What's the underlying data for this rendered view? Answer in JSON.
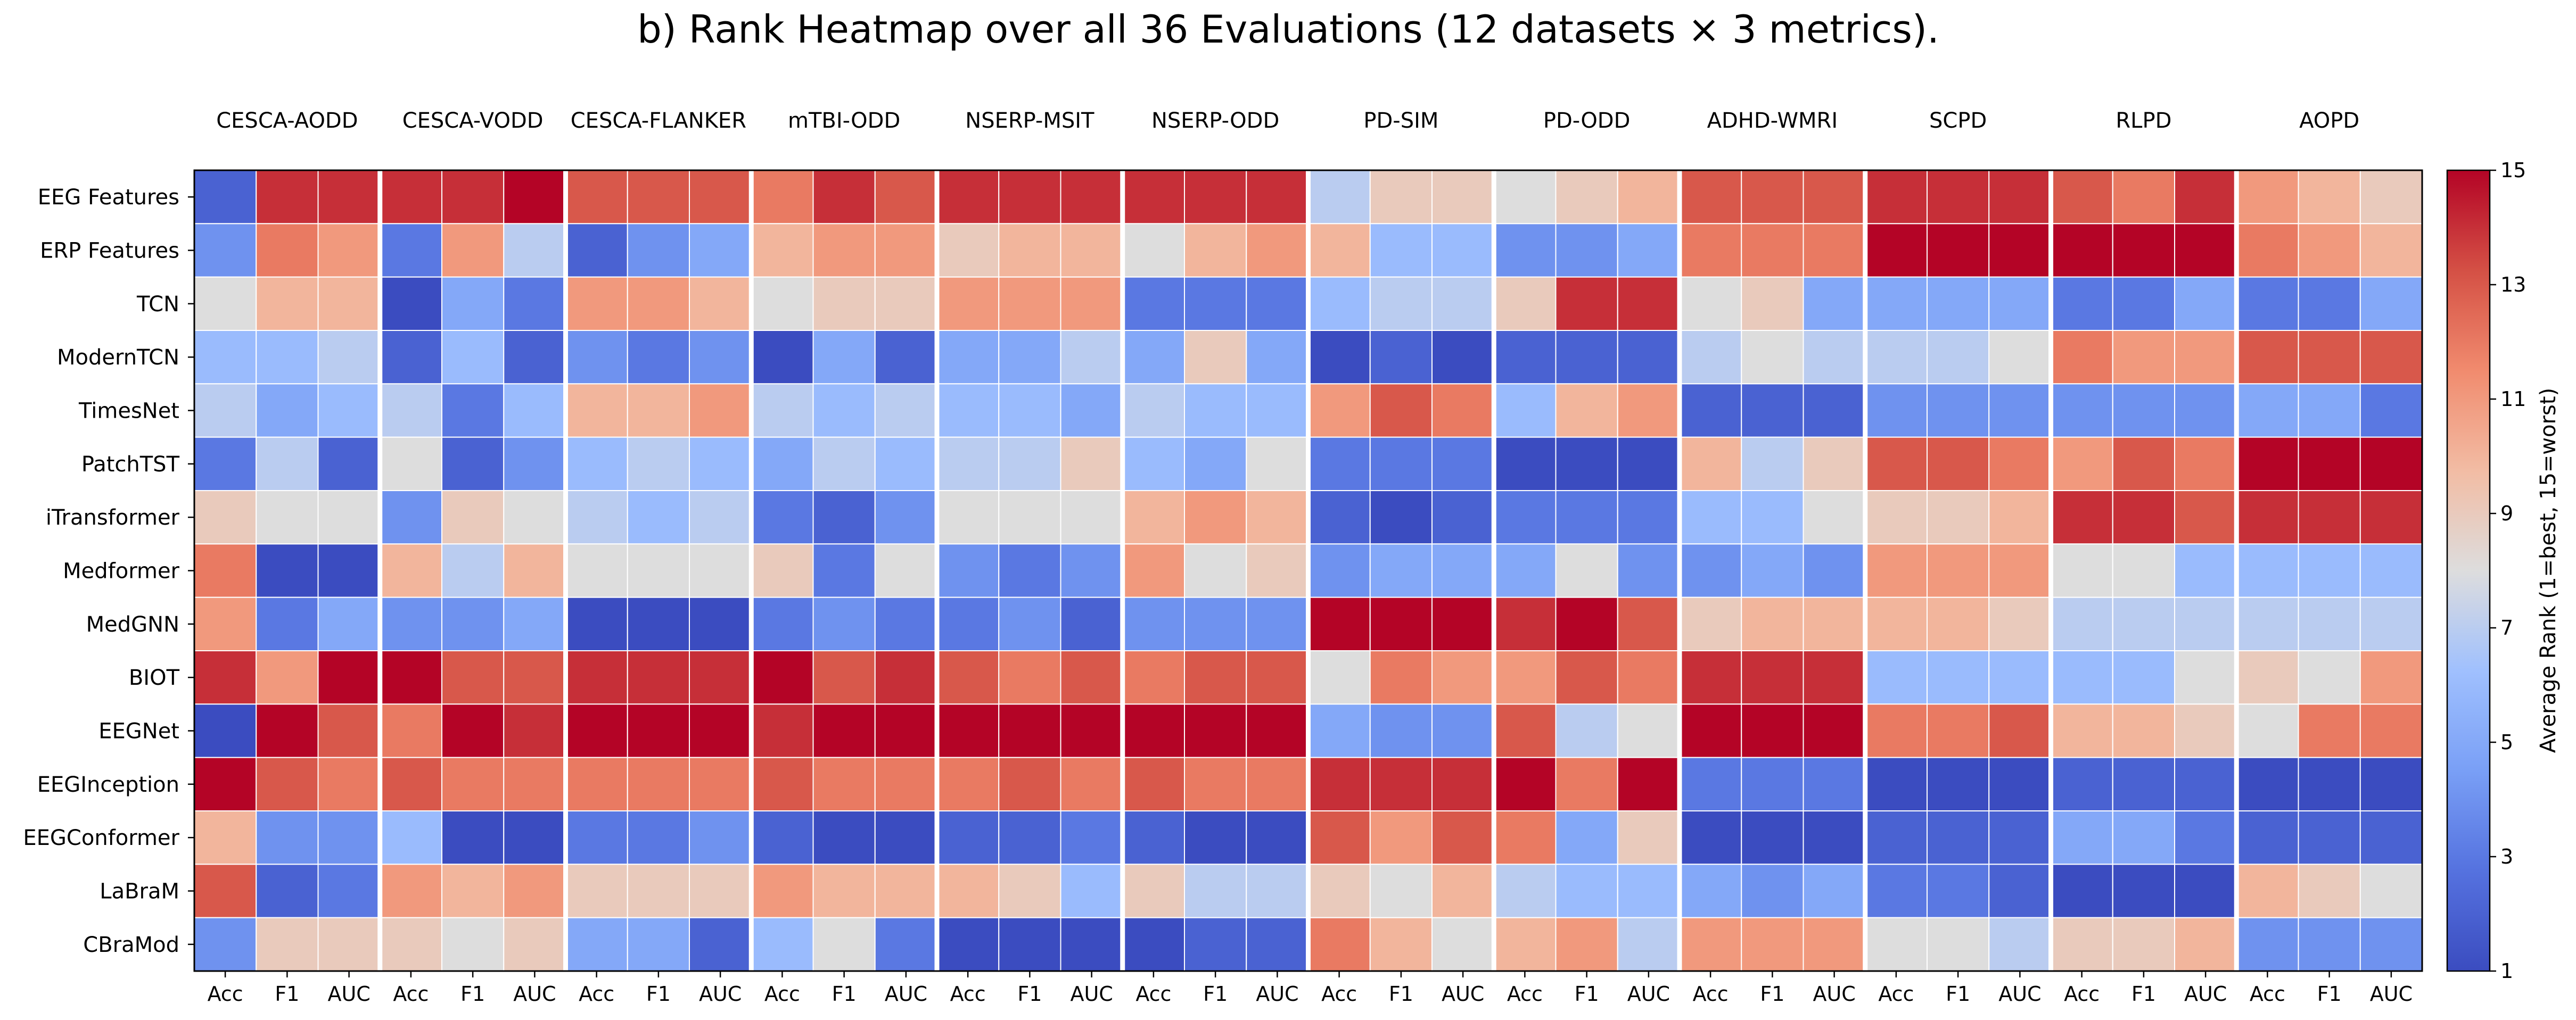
{
  "chart_data": {
    "type": "heatmap",
    "title": "b) Rank Heatmap over all 36 Evaluations (12 datasets × 3 metrics).",
    "datasets": [
      "CESCA-AODD",
      "CESCA-VODD",
      "CESCA-FLANKER",
      "mTBI-ODD",
      "NSERP-MSIT",
      "NSERP-ODD",
      "PD-SIM",
      "PD-ODD",
      "ADHD-WMRI",
      "SCPD",
      "RLPD",
      "AOPD"
    ],
    "metrics": [
      "Acc",
      "F1",
      "AUC"
    ],
    "models": [
      "EEG Features",
      "ERP Features",
      "TCN",
      "ModernTCN",
      "TimesNet",
      "PatchTST",
      "iTransformer",
      "Medformer",
      "MedGNN",
      "BIOT",
      "EEGNet",
      "EEGInception",
      "EEGConformer",
      "LaBraM",
      "CBraMod"
    ],
    "colorbar": {
      "label": "Average Rank (1=best, 15=worst)",
      "ticks": [
        "1",
        "3",
        "5",
        "7",
        "9",
        "11",
        "13",
        "15"
      ],
      "vmin": 1,
      "vmax": 15,
      "colormap": "coolwarm"
    },
    "values": [
      [
        2,
        14,
        14,
        14,
        14,
        15,
        13,
        13,
        13,
        12,
        14,
        13,
        14,
        14,
        14,
        14,
        14,
        14,
        7,
        9,
        9,
        8,
        9,
        10,
        13,
        13,
        13,
        14,
        14,
        14,
        13,
        12,
        14,
        11,
        10,
        9
      ],
      [
        4,
        12,
        11,
        3,
        11,
        7,
        2,
        4,
        5,
        10,
        11,
        11,
        9,
        10,
        10,
        8,
        10,
        11,
        10,
        6,
        6,
        4,
        4,
        5,
        12,
        12,
        12,
        15,
        15,
        15,
        15,
        15,
        15,
        12,
        11,
        10
      ],
      [
        8,
        10,
        10,
        1,
        5,
        3,
        11,
        11,
        10,
        8,
        9,
        9,
        11,
        11,
        11,
        3,
        3,
        3,
        6,
        7,
        7,
        9,
        14,
        14,
        8,
        9,
        5,
        5,
        5,
        5,
        3,
        3,
        5,
        3,
        3,
        5
      ],
      [
        6,
        6,
        7,
        2,
        6,
        2,
        4,
        3,
        4,
        1,
        5,
        2,
        5,
        5,
        7,
        5,
        9,
        5,
        1,
        2,
        1,
        2,
        2,
        2,
        7,
        8,
        7,
        7,
        7,
        8,
        12,
        11,
        11,
        13,
        13,
        13
      ],
      [
        7,
        5,
        6,
        7,
        3,
        6,
        10,
        10,
        11,
        7,
        6,
        7,
        6,
        6,
        5,
        7,
        6,
        6,
        11,
        13,
        12,
        6,
        10,
        11,
        2,
        2,
        2,
        4,
        4,
        4,
        4,
        4,
        4,
        5,
        5,
        3
      ],
      [
        3,
        7,
        2,
        8,
        2,
        4,
        6,
        7,
        6,
        5,
        7,
        6,
        7,
        7,
        9,
        6,
        5,
        8,
        3,
        3,
        3,
        1,
        1,
        1,
        10,
        7,
        9,
        13,
        13,
        12,
        11,
        13,
        12,
        15,
        15,
        15
      ],
      [
        9,
        8,
        8,
        4,
        9,
        8,
        7,
        6,
        7,
        3,
        2,
        4,
        8,
        8,
        8,
        10,
        11,
        10,
        2,
        1,
        2,
        3,
        3,
        3,
        6,
        6,
        8,
        9,
        9,
        10,
        14,
        14,
        13,
        14,
        14,
        14
      ],
      [
        12,
        1,
        1,
        10,
        7,
        10,
        8,
        8,
        8,
        9,
        3,
        8,
        4,
        3,
        4,
        11,
        8,
        9,
        4,
        5,
        5,
        5,
        8,
        4,
        4,
        5,
        4,
        11,
        11,
        11,
        8,
        8,
        6,
        6,
        6,
        6
      ],
      [
        11,
        3,
        5,
        4,
        4,
        5,
        1,
        1,
        1,
        3,
        4,
        3,
        3,
        4,
        2,
        4,
        4,
        4,
        15,
        15,
        15,
        14,
        15,
        13,
        9,
        10,
        10,
        10,
        10,
        9,
        7,
        7,
        7,
        7,
        7,
        7
      ],
      [
        14,
        11,
        15,
        15,
        13,
        13,
        14,
        14,
        14,
        15,
        13,
        14,
        13,
        12,
        13,
        12,
        13,
        13,
        8,
        12,
        11,
        11,
        13,
        12,
        14,
        14,
        14,
        6,
        6,
        6,
        6,
        6,
        8,
        9,
        8,
        11
      ],
      [
        1,
        15,
        13,
        12,
        15,
        14,
        15,
        15,
        15,
        14,
        15,
        15,
        15,
        15,
        15,
        15,
        15,
        15,
        5,
        4,
        4,
        13,
        7,
        8,
        15,
        15,
        15,
        12,
        12,
        13,
        10,
        10,
        9,
        8,
        12,
        12
      ],
      [
        15,
        13,
        12,
        13,
        12,
        12,
        12,
        12,
        12,
        13,
        12,
        12,
        12,
        13,
        12,
        13,
        12,
        12,
        14,
        14,
        14,
        15,
        12,
        15,
        3,
        3,
        3,
        1,
        1,
        1,
        2,
        2,
        2,
        1,
        1,
        1
      ],
      [
        10,
        4,
        4,
        6,
        1,
        1,
        3,
        3,
        4,
        2,
        1,
        1,
        2,
        2,
        3,
        2,
        1,
        1,
        13,
        11,
        13,
        12,
        5,
        9,
        1,
        1,
        1,
        2,
        2,
        2,
        5,
        5,
        3,
        2,
        2,
        2
      ],
      [
        13,
        2,
        3,
        11,
        10,
        11,
        9,
        9,
        9,
        11,
        10,
        10,
        10,
        9,
        6,
        9,
        7,
        7,
        9,
        8,
        10,
        7,
        6,
        6,
        5,
        4,
        5,
        3,
        3,
        2,
        1,
        1,
        1,
        10,
        9,
        8
      ],
      [
        4,
        9,
        9,
        9,
        8,
        9,
        5,
        5,
        2,
        6,
        8,
        3,
        1,
        1,
        1,
        1,
        2,
        2,
        12,
        10,
        8,
        10,
        11,
        7,
        11,
        11,
        11,
        8,
        8,
        7,
        9,
        9,
        10,
        4,
        4,
        4
      ]
    ]
  }
}
